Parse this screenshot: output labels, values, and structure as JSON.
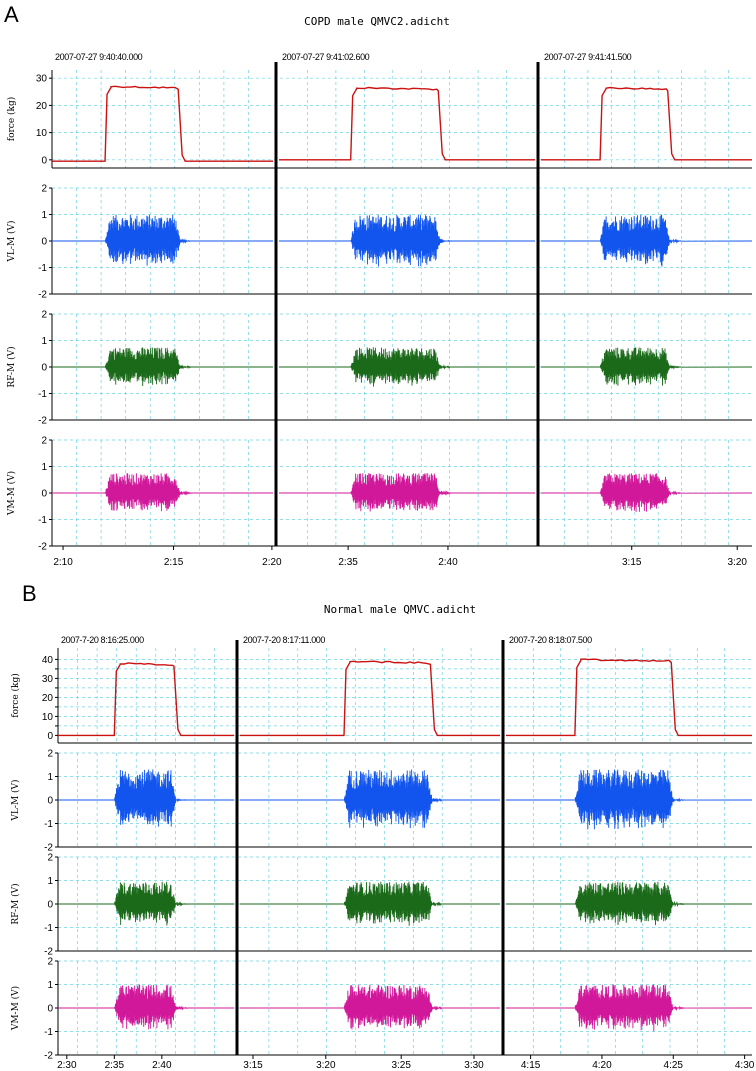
{
  "chart_data": [
    {
      "panel": "A",
      "type": "line",
      "title": "COPD male QMVC2.adicht",
      "timestamps": [
        "2007-07-27 9:40:40.000",
        "2007-07-27 9:41:02.600",
        "2007-07-27 9:41:41.500"
      ],
      "x_ticks": [
        [
          {
            "label": "2:10",
            "t": 0.05
          },
          {
            "label": "2:15",
            "t": 0.55
          },
          {
            "label": "2:20",
            "t": 0.995
          }
        ],
        [
          {
            "label": "2:35",
            "t": 0.27
          },
          {
            "label": "2:40",
            "t": 0.66
          }
        ],
        [
          {
            "label": "3:15",
            "t": 0.43
          },
          {
            "label": "3:20",
            "t": 0.93
          }
        ]
      ],
      "channels": [
        {
          "name": "force",
          "ylabel": "force (kg)",
          "color": "#cc1111",
          "kind": "force",
          "ylim": [
            -3,
            33
          ],
          "yticks": [
            0,
            10,
            20,
            30
          ],
          "segments": [
            {
              "on": 0.24,
              "off": 0.58,
              "level": 27,
              "baseline": -0.5
            },
            {
              "on": 0.28,
              "off": 0.63,
              "level": 26.5,
              "baseline": 0
            },
            {
              "on": 0.28,
              "off": 0.61,
              "level": 26.5,
              "baseline": 0
            }
          ]
        },
        {
          "name": "VL-M",
          "ylabel": "VL-M (V)",
          "color": "#1155ee",
          "kind": "emg",
          "ylim": [
            -2,
            2
          ],
          "yticks": [
            -2,
            -1,
            0,
            1,
            2
          ],
          "amp": 1.0,
          "segments": [
            {
              "on": 0.24,
              "off": 0.58
            },
            {
              "on": 0.28,
              "off": 0.63
            },
            {
              "on": 0.28,
              "off": 0.61
            }
          ]
        },
        {
          "name": "RF-M",
          "ylabel": "RF-M (V)",
          "color": "#1a6a1a",
          "kind": "emg",
          "ylim": [
            -2,
            2
          ],
          "yticks": [
            -2,
            -1,
            0,
            1,
            2
          ],
          "amp": 0.75,
          "segments": [
            {
              "on": 0.24,
              "off": 0.58
            },
            {
              "on": 0.28,
              "off": 0.63
            },
            {
              "on": 0.28,
              "off": 0.61
            }
          ]
        },
        {
          "name": "VM-M",
          "ylabel": "VM-M (V)",
          "color": "#d1189a",
          "kind": "emg",
          "ylim": [
            -2,
            2
          ],
          "yticks": [
            -2,
            -1,
            0,
            1,
            2
          ],
          "amp": 0.75,
          "segments": [
            {
              "on": 0.24,
              "off": 0.58
            },
            {
              "on": 0.28,
              "off": 0.63
            },
            {
              "on": 0.28,
              "off": 0.61
            }
          ]
        }
      ]
    },
    {
      "panel": "B",
      "type": "line",
      "title": "Normal male QMVC.adicht",
      "timestamps": [
        "2007-7-20 8:16:25.000",
        "2007-7-20 8:17:11.000",
        "2007-7-20 8:18:07.500"
      ],
      "x_ticks": [
        [
          {
            "label": "2:30",
            "t": 0.05
          },
          {
            "label": "2:35",
            "t": 0.32
          },
          {
            "label": "2:40",
            "t": 0.59
          }
        ],
        [
          {
            "label": "3:15",
            "t": 0.05
          },
          {
            "label": "3:20",
            "t": 0.33
          },
          {
            "label": "3:25",
            "t": 0.62
          },
          {
            "label": "3:30",
            "t": 0.9
          }
        ],
        [
          {
            "label": "4:15",
            "t": 0.1
          },
          {
            "label": "4:20",
            "t": 0.39
          },
          {
            "label": "4:25",
            "t": 0.68
          },
          {
            "label": "4:30",
            "t": 0.97
          }
        ]
      ],
      "channels": [
        {
          "name": "force",
          "ylabel": "force (kg)",
          "color": "#cc1111",
          "kind": "force",
          "ylim": [
            -4,
            46
          ],
          "yticks": [
            0,
            5,
            10,
            15,
            20,
            25,
            30,
            35,
            40
          ],
          "ytick_labels": [
            "0",
            "10",
            "20",
            "30",
            "40"
          ],
          "segments": [
            {
              "on": 0.32,
              "off": 0.67,
              "level": 38,
              "baseline": 0
            },
            {
              "on": 0.4,
              "off": 0.74,
              "level": 39,
              "baseline": 0
            },
            {
              "on": 0.28,
              "off": 0.68,
              "level": 40,
              "baseline": 0
            }
          ]
        },
        {
          "name": "VL-M",
          "ylabel": "VL-M (V)",
          "color": "#1155ee",
          "kind": "emg",
          "ylim": [
            -2,
            2
          ],
          "yticks": [
            -2,
            -1,
            0,
            1,
            2
          ],
          "amp": 1.3,
          "segments": [
            {
              "on": 0.32,
              "off": 0.67
            },
            {
              "on": 0.4,
              "off": 0.74
            },
            {
              "on": 0.28,
              "off": 0.68
            }
          ]
        },
        {
          "name": "RF-M",
          "ylabel": "RF-M (V)",
          "color": "#1a6a1a",
          "kind": "emg",
          "ylim": [
            -2,
            2
          ],
          "yticks": [
            -2,
            -1,
            0,
            1,
            2
          ],
          "amp": 0.95,
          "segments": [
            {
              "on": 0.32,
              "off": 0.67
            },
            {
              "on": 0.4,
              "off": 0.74
            },
            {
              "on": 0.28,
              "off": 0.68
            }
          ]
        },
        {
          "name": "VM-M",
          "ylabel": "VM-M (V)",
          "color": "#d1189a",
          "kind": "emg",
          "ylim": [
            -2,
            2
          ],
          "yticks": [
            -2,
            -1,
            0,
            1,
            2
          ],
          "amp": 1.0,
          "segments": [
            {
              "on": 0.32,
              "off": 0.67
            },
            {
              "on": 0.4,
              "off": 0.74
            },
            {
              "on": 0.28,
              "off": 0.68
            }
          ]
        }
      ]
    }
  ]
}
